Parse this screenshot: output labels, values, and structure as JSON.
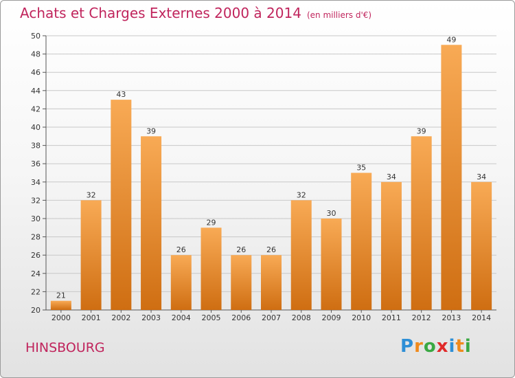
{
  "title": "Achats et Charges Externes 2000 à 2014",
  "subtitle": "(en milliers d'€)",
  "place": "HINSBOURG",
  "logo": {
    "letters": [
      "P",
      "r",
      "o",
      "x",
      "i",
      "t",
      "i"
    ],
    "colors": [
      "#2e8fd6",
      "#f08a1c",
      "#3aa843",
      "#e02a2a",
      "#2e8fd6",
      "#f08a1c",
      "#3aa843"
    ]
  },
  "colors": {
    "bar_top": "#f8aa55",
    "bar_bottom": "#cf6e12",
    "title": "#c0245c",
    "grid": "#c8c8c8"
  },
  "chart_data": {
    "type": "bar",
    "categories": [
      "2000",
      "2001",
      "2002",
      "2003",
      "2004",
      "2005",
      "2006",
      "2007",
      "2008",
      "2009",
      "2010",
      "2011",
      "2012",
      "2013",
      "2014"
    ],
    "values": [
      21,
      32,
      43,
      39,
      26,
      29,
      26,
      26,
      32,
      30,
      35,
      34,
      39,
      49,
      34
    ],
    "ylim": [
      20,
      50
    ],
    "yticks": [
      20,
      22,
      24,
      26,
      28,
      30,
      32,
      34,
      36,
      38,
      40,
      42,
      44,
      46,
      48,
      50
    ],
    "grid": true,
    "data_labels": true
  }
}
